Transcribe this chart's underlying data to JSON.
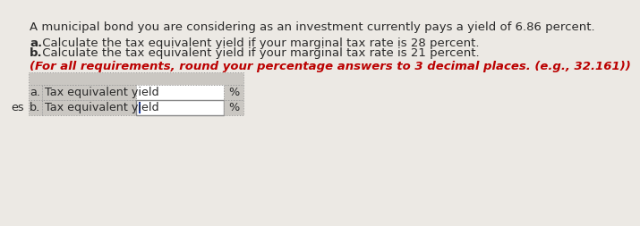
{
  "title_line": "A municipal bond you are considering as an investment currently pays a yield of 6.86 percent.",
  "line_a_bold": "a.",
  "line_a_rest": " Calculate the tax equivalent yield if your marginal tax rate is 28 percent.",
  "line_b_bold": "b.",
  "line_b_rest": " Calculate the tax equivalent yield if your marginal tax rate is 21 percent.",
  "note": "(For all requirements, round your percentage answers to 3 decimal places. (e.g., 32.161))",
  "table_row_a_label": "a.",
  "table_row_a_text": "Tax equivalent yield",
  "table_row_b_label": "b.",
  "table_row_b_text": "Tax equivalent yield",
  "percent_symbol": "%",
  "background_color": "#ece9e4",
  "table_bg_color": "#cac7c2",
  "table_border_color": "#888888",
  "table_dot_color": "#999999",
  "table_input_bg": "#ffffff",
  "text_color": "#2a2a2a",
  "note_color": "#bb0000",
  "es_label": "es",
  "title_fontsize": 9.5,
  "body_fontsize": 9.5,
  "note_fontsize": 9.5,
  "table_fontsize": 9.2
}
